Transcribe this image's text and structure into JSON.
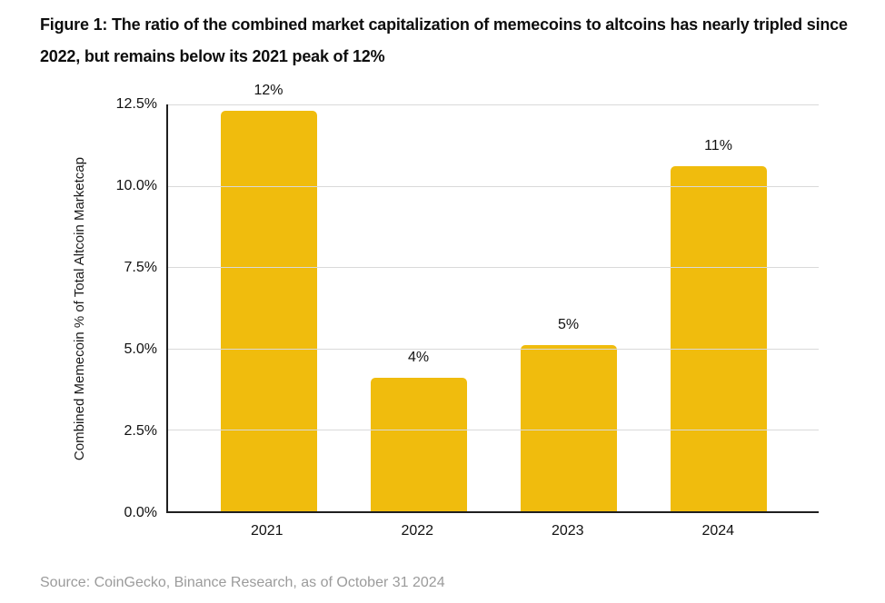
{
  "figure": {
    "title": "Figure 1: The ratio of the combined market capitalization of memecoins to altcoins has nearly tripled since 2022, but remains below its 2021 peak of 12%",
    "source": "Source: CoinGecko, Binance Research, as of October 31 2024"
  },
  "chart_data": {
    "type": "bar",
    "categories": [
      "2021",
      "2022",
      "2023",
      "2024"
    ],
    "values": [
      12.3,
      4.1,
      5.1,
      10.6
    ],
    "bar_labels": [
      "12%",
      "4%",
      "5%",
      "11%"
    ],
    "title": "",
    "xlabel": "",
    "ylabel": "Combined Memecoin % of Total Altcoin Marketcap",
    "ylim": [
      0,
      12.5
    ],
    "yticks": [
      0,
      2.5,
      5,
      7.5,
      10,
      12.5
    ],
    "ytick_labels": [
      "0.0%",
      "2.5%",
      "5.0%",
      "7.5%",
      "10.0%",
      "12.5%"
    ],
    "grid": true,
    "legend": "none",
    "colors": {
      "bar": "#F0BC0D",
      "gridline": "#D9D9D9",
      "axis": "#1F1F1F",
      "tick_label": "#111111",
      "title_text": "#0E0E0E",
      "source_text": "#9B9B9B",
      "background": "#FFFFFF"
    }
  }
}
